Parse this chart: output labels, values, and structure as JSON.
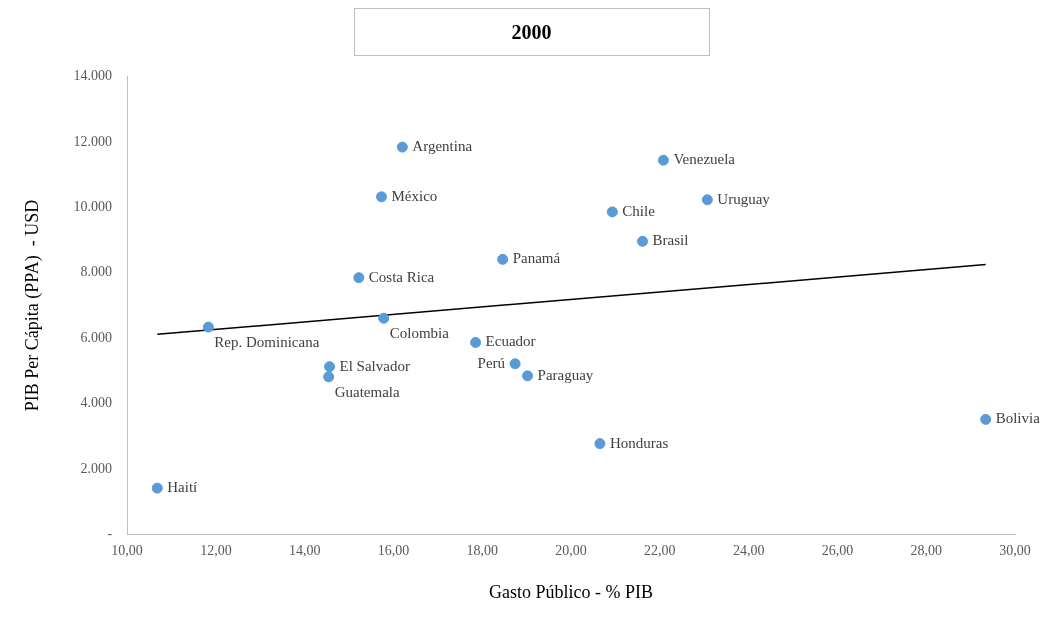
{
  "chart_data": {
    "type": "scatter",
    "title": "2000",
    "xlabel": "Gasto Público - % PIB",
    "ylabel": "PIB Per Cápita (PPA)  - USD",
    "xlim": [
      10,
      30
    ],
    "xticks": [
      {
        "value": 10,
        "label": "10,00"
      },
      {
        "value": 12,
        "label": "12,00"
      },
      {
        "value": 14,
        "label": "14,00"
      },
      {
        "value": 16,
        "label": "16,00"
      },
      {
        "value": 18,
        "label": "18,00"
      },
      {
        "value": 20,
        "label": "20,00"
      },
      {
        "value": 22,
        "label": "22,00"
      },
      {
        "value": 24,
        "label": "24,00"
      },
      {
        "value": 26,
        "label": "26,00"
      },
      {
        "value": 28,
        "label": "28,00"
      },
      {
        "value": 30,
        "label": "30,00"
      }
    ],
    "ylim": [
      0,
      14000
    ],
    "yticks": [
      {
        "value": 0,
        "label": "-"
      },
      {
        "value": 2000,
        "label": "2.000"
      },
      {
        "value": 4000,
        "label": "4.000"
      },
      {
        "value": 6000,
        "label": "6.000"
      },
      {
        "value": 8000,
        "label": "8.000"
      },
      {
        "value": 10000,
        "label": "10.000"
      },
      {
        "value": 12000,
        "label": "12.000"
      },
      {
        "value": 14000,
        "label": "14.000"
      }
    ],
    "grid": false,
    "legend": false,
    "marker": "circle",
    "series": [
      {
        "name": "Argentina",
        "color": "#5b9bd5",
        "x": [
          16.2
        ],
        "values": [
          11840
        ]
      },
      {
        "name": "Venezuela",
        "color": "#5b9bd5",
        "x": [
          22.08
        ],
        "values": [
          11440
        ]
      },
      {
        "name": "México",
        "color": "#5b9bd5",
        "x": [
          15.73
        ],
        "values": [
          10320
        ]
      },
      {
        "name": "Uruguay",
        "color": "#5b9bd5",
        "x": [
          23.07
        ],
        "values": [
          10230
        ]
      },
      {
        "name": "Chile",
        "color": "#5b9bd5",
        "x": [
          20.93
        ],
        "values": [
          9860
        ]
      },
      {
        "name": "Brasil",
        "color": "#5b9bd5",
        "x": [
          21.61
        ],
        "values": [
          8960
        ]
      },
      {
        "name": "Panamá",
        "color": "#5b9bd5",
        "x": [
          18.46
        ],
        "values": [
          8410
        ]
      },
      {
        "name": "Costa Rica",
        "color": "#5b9bd5",
        "x": [
          15.22
        ],
        "values": [
          7850
        ]
      },
      {
        "name": "Rep. Dominicana",
        "color": "#5b9bd5",
        "x": [
          11.83
        ],
        "values": [
          6340
        ]
      },
      {
        "name": "Colombia",
        "color": "#5b9bd5",
        "x": [
          15.78
        ],
        "values": [
          6610
        ]
      },
      {
        "name": "Ecuador",
        "color": "#5b9bd5",
        "x": [
          17.85
        ],
        "values": [
          5870
        ]
      },
      {
        "name": "Perú",
        "color": "#5b9bd5",
        "x": [
          18.74
        ],
        "values": [
          5220
        ]
      },
      {
        "name": "Paraguay",
        "color": "#5b9bd5",
        "x": [
          19.02
        ],
        "values": [
          4850
        ]
      },
      {
        "name": "El Salvador",
        "color": "#5b9bd5",
        "x": [
          14.56
        ],
        "values": [
          5130
        ]
      },
      {
        "name": "Guatemala",
        "color": "#5b9bd5",
        "x": [
          14.54
        ],
        "values": [
          4820
        ]
      },
      {
        "name": "Honduras",
        "color": "#5b9bd5",
        "x": [
          20.65
        ],
        "values": [
          2780
        ]
      },
      {
        "name": "Bolivia",
        "color": "#5b9bd5",
        "x": [
          29.34
        ],
        "values": [
          3520
        ]
      },
      {
        "name": "Haití",
        "color": "#5b9bd5",
        "x": [
          10.68
        ],
        "values": [
          1420
        ]
      },
      {
        "type": "line",
        "marker": "none",
        "color": "#000000",
        "x": [
          10.68,
          29.34
        ],
        "values": [
          6120,
          8250
        ]
      }
    ]
  }
}
